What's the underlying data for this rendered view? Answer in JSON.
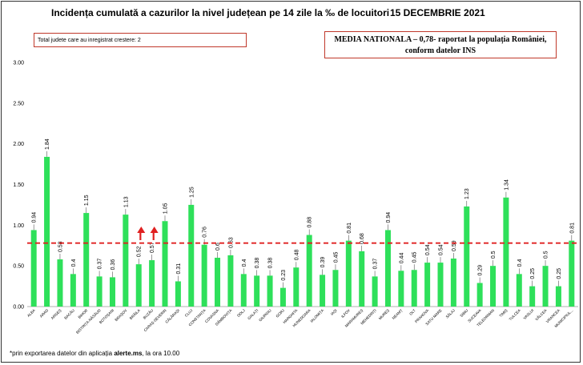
{
  "header": {
    "title": "Incidența cumulată a cazurilor la nivel județean pe 14 zile la ‰ de locuitori",
    "date": "15 DECEMBRIE 2021"
  },
  "growth_note": "Total judete care au inregistrat crestere: 2",
  "national_box": {
    "line1": "MEDIA NATIONALA – 0,78-  raportat la populația României,",
    "line2": "conform datelor INS"
  },
  "footnote": {
    "prefix": "*prin exportarea datelor din aplicația ",
    "app": "alerte.ms",
    "suffix": ", la ora 10.00"
  },
  "colors": {
    "bar": "#2ee05a",
    "reference_line": "#e02020",
    "arrow": "#e02020",
    "box_border": "#c0392b"
  },
  "chart_data": {
    "type": "bar",
    "title": "Incidența cumulată a cazurilor la nivel județean pe 14 zile la ‰ de locuitori",
    "xlabel": "",
    "ylabel": "",
    "ylim": [
      0,
      3.0
    ],
    "y_ticks": [
      "0.00",
      "0.50",
      "1.00",
      "1.50",
      "2.00",
      "2.50",
      "3.00"
    ],
    "grid": false,
    "reference_line": {
      "value": 0.78,
      "style": "dashed"
    },
    "increase_markers": [
      "BRĂILA",
      "BUZĂU"
    ],
    "categories": [
      "ALBA",
      "ARAD",
      "ARGEȘ",
      "BACĂU",
      "BIHOR",
      "BISTRIȚA-NĂSĂUD",
      "BOTOȘANI",
      "BRAȘOV",
      "BRĂILA",
      "BUZĂU",
      "CARAȘ-SEVERIN",
      "CĂLĂRAȘI",
      "CLUJ",
      "CONSTANȚA",
      "COVASNA",
      "DÂMBOVIȚA",
      "DOLJ",
      "GALAȚI",
      "GIURGIU",
      "GORJ",
      "HARGHITA",
      "HUNEDOARA",
      "IALOMIȚA",
      "IAȘI",
      "ILFOV",
      "MARAMUREȘ",
      "MEHEDINȚI",
      "MUREȘ",
      "NEAMȚ",
      "OLT",
      "PRAHOVA",
      "SATU MARE",
      "SĂLAJ",
      "SIBIU",
      "SUCEAVA",
      "TELEORMAN",
      "TIMIȘ",
      "TULCEA",
      "VASLUI",
      "VÂLCEA",
      "VRANCEA",
      "MUNICIPIUL..."
    ],
    "values": [
      0.94,
      1.84,
      0.58,
      0.4,
      1.15,
      0.37,
      0.36,
      1.13,
      0.52,
      0.57,
      1.05,
      0.31,
      1.25,
      0.76,
      0.6,
      0.63,
      0.4,
      0.38,
      0.38,
      0.23,
      0.48,
      0.88,
      0.39,
      0.45,
      0.81,
      0.68,
      0.37,
      0.94,
      0.44,
      0.45,
      0.54,
      0.54,
      0.59,
      1.23,
      0.29,
      0.5,
      1.34,
      0.4,
      0.25,
      0.5,
      0.25,
      0.81
    ],
    "value_labels": [
      "0.94",
      "1.84",
      "0.58",
      "0.4",
      "1.15",
      "0.37",
      "0.36",
      "1.13",
      "0.52",
      "0.57",
      "1.05",
      "0.31",
      "1.25",
      "0.76",
      "0.6",
      "0.63",
      "0.4",
      "0.38",
      "0.38",
      "0.23",
      "0.48",
      "0.88",
      "0.39",
      "0.45",
      "0.81",
      "0.68",
      "0.37",
      "0.94",
      "0.44",
      "0.45",
      "0.54",
      "0.54",
      "0.59",
      "1.23",
      "0.29",
      "0.5",
      "1.34",
      "0.4",
      "0.25",
      "0.5",
      "0.25",
      "0.81"
    ]
  }
}
